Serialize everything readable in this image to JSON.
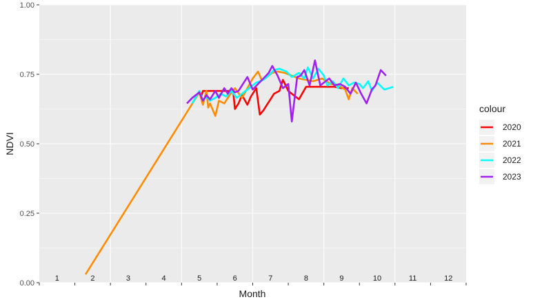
{
  "chart_data": {
    "type": "line",
    "xlabel": "Month",
    "ylabel": "NDVI",
    "ylim": [
      0,
      1
    ],
    "y_ticks": [
      "0.00",
      "0.25",
      "0.50",
      "0.75",
      "1.00"
    ],
    "month_labels": [
      "1",
      "2",
      "3",
      "4",
      "5",
      "6",
      "7",
      "8",
      "9",
      "10",
      "11",
      "12"
    ],
    "grid": true,
    "legend": {
      "title": "colour",
      "position": "right"
    },
    "series": [
      {
        "name": "2020",
        "color": "#ff0000",
        "x": [
          5.0,
          5.05,
          5.1,
          5.25,
          5.4,
          5.6,
          5.75,
          5.85,
          5.95,
          6.0,
          6.1,
          6.2,
          6.35,
          6.45,
          6.6,
          6.7,
          6.8,
          6.9,
          7.0,
          7.1,
          7.25,
          7.35,
          7.5,
          7.6,
          7.8,
          8.0,
          8.2,
          8.4,
          8.6,
          8.8,
          9.0,
          9.2
        ],
        "y": [
          0.69,
          0.67,
          0.69,
          0.69,
          0.69,
          0.69,
          0.69,
          0.69,
          0.69,
          0.625,
          0.645,
          0.675,
          0.64,
          0.67,
          0.7,
          0.605,
          0.62,
          0.64,
          0.66,
          0.68,
          0.69,
          0.73,
          0.69,
          0.68,
          0.66,
          0.705,
          0.705,
          0.705,
          0.705,
          0.705,
          0.7,
          0.7
        ]
      },
      {
        "name": "2021",
        "color": "#ff8c00",
        "x": [
          1.8,
          5.0,
          5.1,
          5.2,
          5.25,
          5.3,
          5.45,
          5.55,
          5.7,
          5.85,
          6.0,
          6.2,
          6.35,
          6.5,
          6.65,
          6.75,
          6.9,
          7.05,
          7.2,
          7.4,
          7.6,
          7.8,
          8.0,
          8.2,
          8.45,
          8.7,
          8.9,
          9.1,
          9.2,
          9.3,
          9.45
        ],
        "y": [
          0.03,
          0.685,
          0.64,
          0.69,
          0.63,
          0.645,
          0.6,
          0.655,
          0.645,
          0.675,
          0.7,
          0.665,
          0.7,
          0.735,
          0.76,
          0.73,
          0.74,
          0.755,
          0.76,
          0.755,
          0.745,
          0.735,
          0.73,
          0.725,
          0.735,
          0.715,
          0.71,
          0.695,
          0.66,
          0.7,
          0.68
        ]
      },
      {
        "name": "2022",
        "color": "#00ffff",
        "x": [
          4.8,
          5.0,
          5.1,
          5.2,
          5.3,
          5.45,
          5.6,
          5.75,
          5.9,
          6.05,
          6.2,
          6.4,
          6.6,
          6.8,
          6.95,
          7.1,
          7.25,
          7.45,
          7.6,
          7.8,
          7.95,
          8.05,
          8.2,
          8.35,
          8.5,
          8.6,
          8.75,
          8.9,
          9.05,
          9.2,
          9.35,
          9.5,
          9.6,
          9.75,
          9.85,
          10.0,
          10.2,
          10.45
        ],
        "y": [
          0.645,
          0.69,
          0.655,
          0.67,
          0.655,
          0.665,
          0.68,
          0.67,
          0.69,
          0.665,
          0.68,
          0.7,
          0.72,
          0.73,
          0.745,
          0.765,
          0.77,
          0.76,
          0.74,
          0.755,
          0.735,
          0.775,
          0.735,
          0.77,
          0.745,
          0.71,
          0.725,
          0.7,
          0.735,
          0.71,
          0.72,
          0.715,
          0.7,
          0.725,
          0.69,
          0.72,
          0.695,
          0.705
        ]
      },
      {
        "name": "2023",
        "color": "#a020f0",
        "x": [
          4.65,
          4.8,
          5.0,
          5.1,
          5.2,
          5.3,
          5.45,
          5.55,
          5.7,
          5.8,
          5.9,
          6.0,
          6.1,
          6.25,
          6.35,
          6.5,
          6.65,
          6.8,
          6.95,
          7.05,
          7.2,
          7.35,
          7.5,
          7.6,
          7.75,
          7.85,
          7.95,
          8.1,
          8.25,
          8.4,
          8.5,
          8.65,
          8.8,
          8.95,
          9.1,
          9.25,
          9.4,
          9.55,
          9.7,
          9.85,
          9.95,
          10.1,
          10.25
        ],
        "y": [
          0.645,
          0.665,
          0.685,
          0.655,
          0.675,
          0.66,
          0.69,
          0.665,
          0.7,
          0.68,
          0.7,
          0.685,
          0.69,
          0.72,
          0.74,
          0.695,
          0.715,
          0.735,
          0.755,
          0.78,
          0.745,
          0.7,
          0.715,
          0.58,
          0.74,
          0.745,
          0.765,
          0.71,
          0.8,
          0.71,
          0.72,
          0.735,
          0.71,
          0.715,
          0.705,
          0.68,
          0.72,
          0.68,
          0.645,
          0.695,
          0.71,
          0.765,
          0.745
        ]
      }
    ]
  }
}
